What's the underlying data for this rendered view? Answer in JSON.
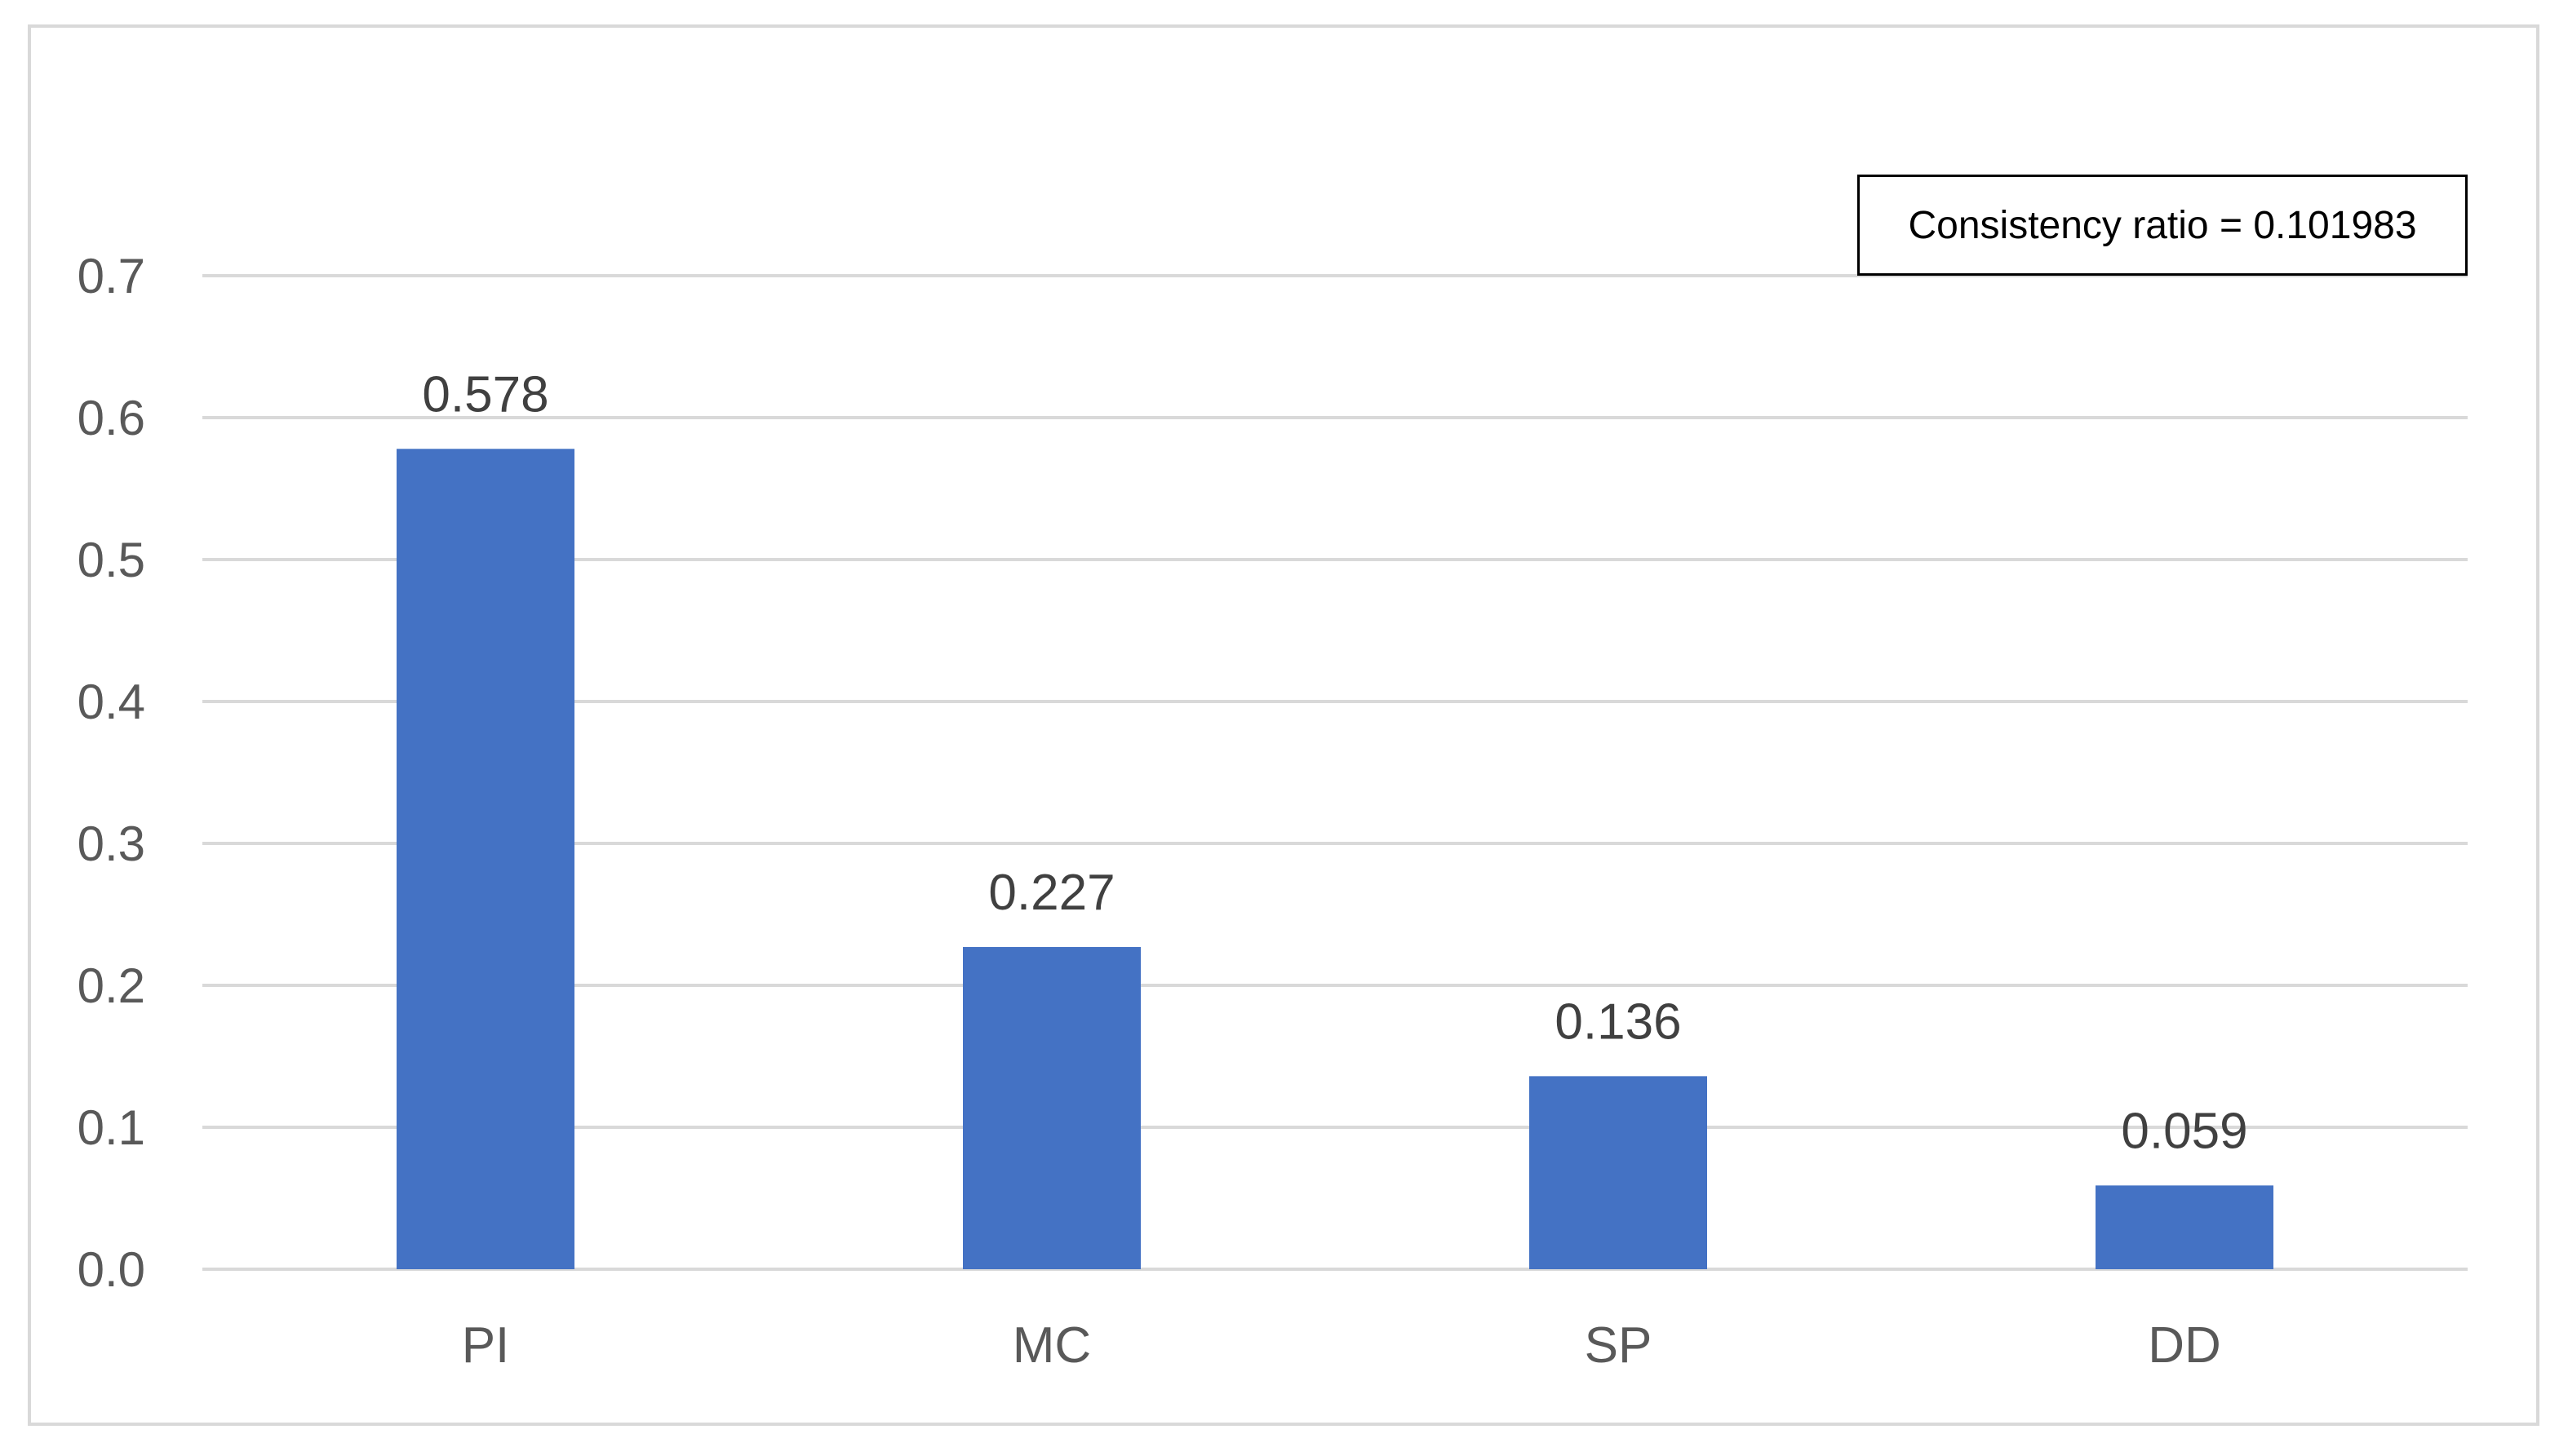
{
  "chart_data": {
    "type": "bar",
    "categories": [
      "PI",
      "MC",
      "SP",
      "DD"
    ],
    "values": [
      0.578,
      0.227,
      0.136,
      0.059
    ],
    "data_labels": [
      "0.578",
      "0.227",
      "0.136",
      "0.059"
    ],
    "title": "",
    "xlabel": "",
    "ylabel": "",
    "ylim": [
      0,
      0.7
    ],
    "yticks": [
      "0.0",
      "0.1",
      "0.2",
      "0.3",
      "0.4",
      "0.5",
      "0.6",
      "0.7"
    ],
    "grid": true,
    "legend": "none",
    "bar_color": "#4472C4",
    "annotation": "Consistency ratio = 0.101983"
  }
}
